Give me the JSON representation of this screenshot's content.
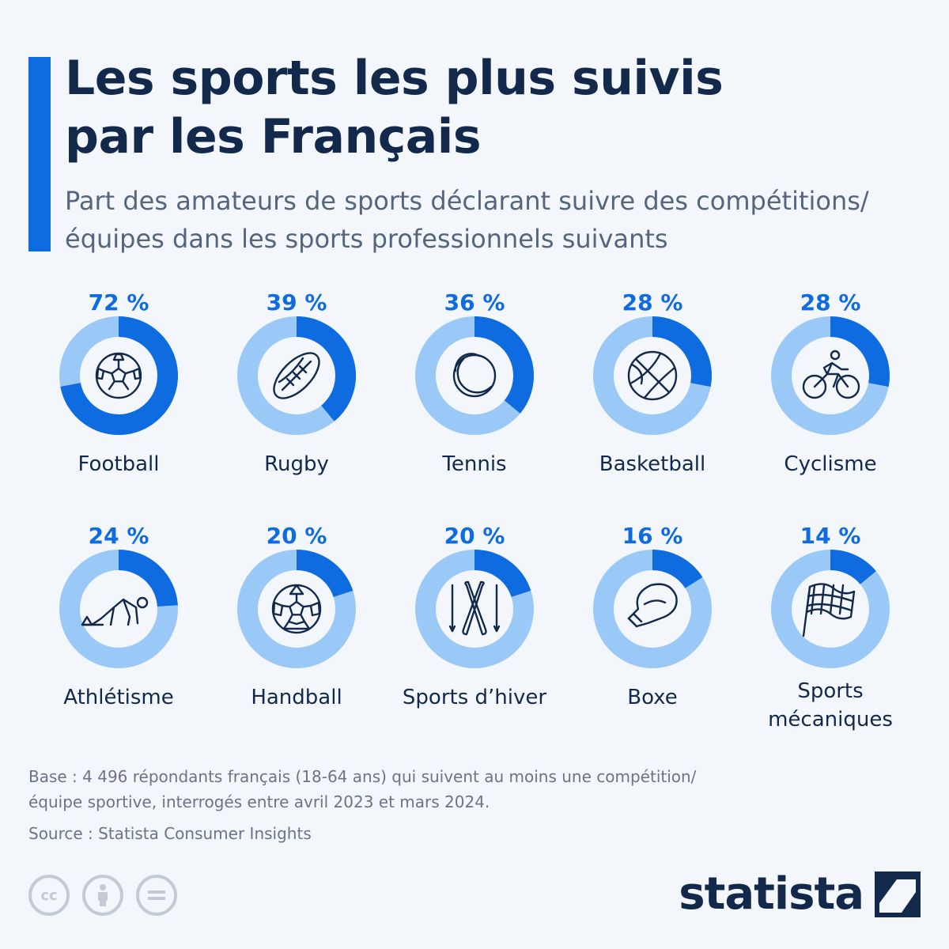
{
  "header": {
    "title_line1": "Les sports les plus suivis",
    "title_line2": "par les Français",
    "subtitle_line1": "Part des amateurs de sports déclarant suivre des compétitions/",
    "subtitle_line2": "équipes dans les sports professionnels suivants"
  },
  "colors": {
    "accent": "#0e6be0",
    "ring_track": "#9bc9f7",
    "text_dark": "#13294b",
    "text_muted": "#55657e"
  },
  "chart_data": {
    "type": "donut-grid",
    "title": "Les sports les plus suivis par les Français",
    "subtitle": "Part des amateurs de sports déclarant suivre des compétitions/équipes dans les sports professionnels suivants",
    "unit": "%",
    "categories": [
      "Football",
      "Rugby",
      "Tennis",
      "Basketball",
      "Cyclisme",
      "Athlétisme",
      "Handball",
      "Sports d’hiver",
      "Boxe",
      "Sports mécaniques"
    ],
    "values": [
      72,
      39,
      36,
      28,
      28,
      24,
      20,
      20,
      16,
      14
    ],
    "value_labels": [
      "72 %",
      "39 %",
      "36 %",
      "28 %",
      "28 %",
      "24 %",
      "20 %",
      "20 %",
      "16 %",
      "14 %"
    ],
    "label_lines": [
      [
        "Football"
      ],
      [
        "Rugby"
      ],
      [
        "Tennis"
      ],
      [
        "Basketball"
      ],
      [
        "Cyclisme"
      ],
      [
        "Athlétisme"
      ],
      [
        "Handball"
      ],
      [
        "Sports d’hiver"
      ],
      [
        "Boxe"
      ],
      [
        "Sports",
        "mécaniques"
      ]
    ],
    "icons": [
      "soccer-ball-icon",
      "rugby-ball-icon",
      "tennis-ball-icon",
      "basketball-icon",
      "cyclist-icon",
      "sprinter-icon",
      "handball-icon",
      "skis-icon",
      "boxing-glove-icon",
      "checkered-flag-icon"
    ]
  },
  "footer": {
    "base_line1": "Base : 4 496 répondants français (18-64 ans) qui suivent au moins une compétition/",
    "base_line2": "équipe sportive, interrogés entre avril 2023 et mars 2024.",
    "source": "Source : Statista Consumer Insights",
    "cc_label": "cc",
    "logo_text": "statista"
  }
}
